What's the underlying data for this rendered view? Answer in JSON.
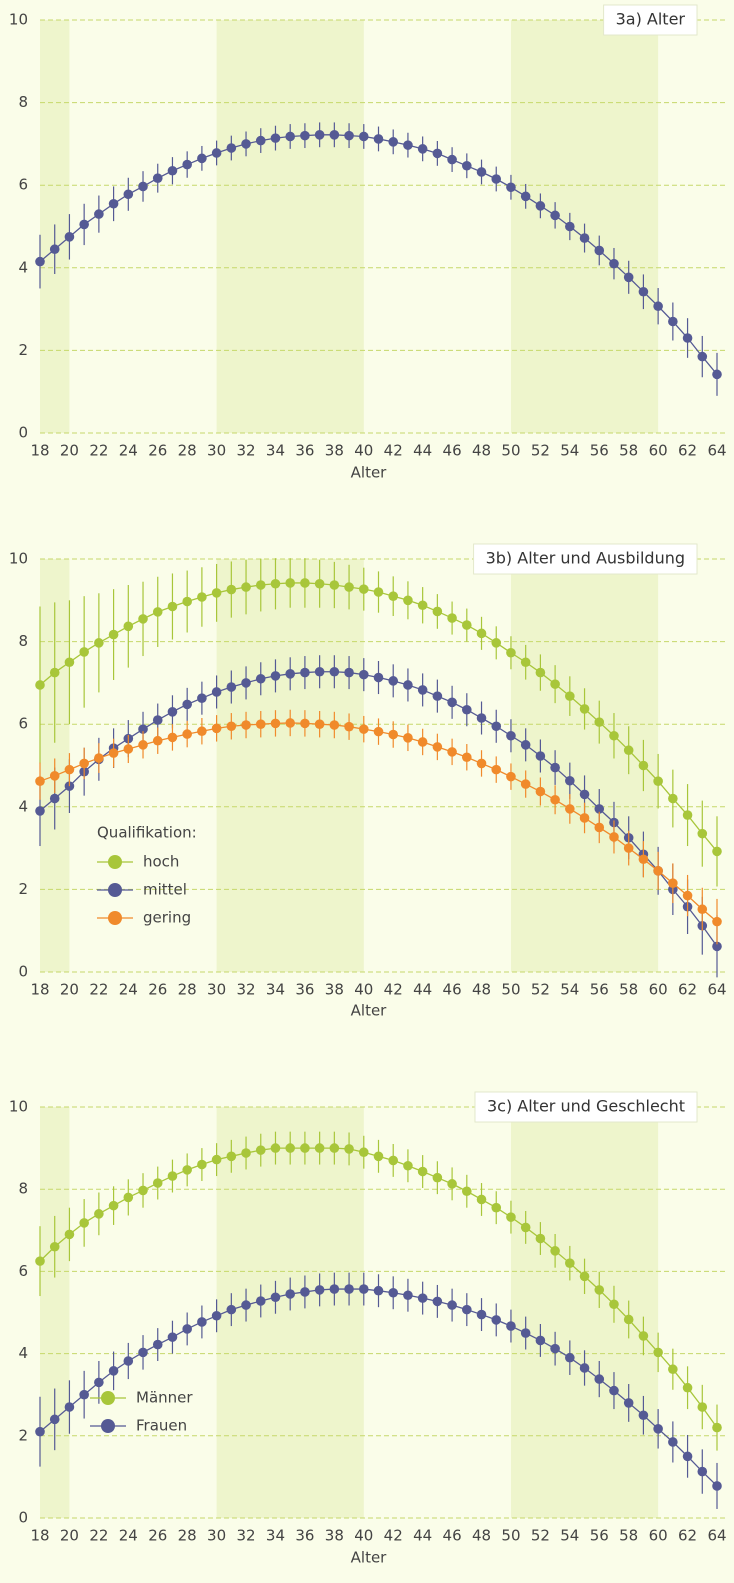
{
  "chart_data": [
    {
      "type": "line",
      "title": "3a) Alter",
      "xlabel": "Alter",
      "x": [
        18,
        19,
        20,
        21,
        22,
        23,
        24,
        25,
        26,
        27,
        28,
        29,
        30,
        31,
        32,
        33,
        34,
        35,
        36,
        37,
        38,
        39,
        40,
        41,
        42,
        43,
        44,
        45,
        46,
        47,
        48,
        49,
        50,
        51,
        52,
        53,
        54,
        55,
        56,
        57,
        58,
        59,
        60,
        61,
        62,
        63,
        64
      ],
      "xlim": [
        18,
        64
      ],
      "xticks": [
        18,
        20,
        22,
        24,
        26,
        28,
        30,
        32,
        34,
        36,
        38,
        40,
        42,
        44,
        46,
        48,
        50,
        52,
        54,
        56,
        58,
        60,
        62,
        64
      ],
      "ylim": [
        0,
        10
      ],
      "yticks": [
        0,
        2,
        4,
        6,
        8,
        10
      ],
      "grid": true,
      "shaded_ranges": [
        [
          18,
          20
        ],
        [
          30,
          40
        ],
        [
          50,
          60
        ]
      ],
      "series": [
        {
          "color": "#555a94",
          "values": [
            4.15,
            4.45,
            4.75,
            5.05,
            5.3,
            5.55,
            5.78,
            5.97,
            6.17,
            6.35,
            6.5,
            6.65,
            6.78,
            6.9,
            7.0,
            7.08,
            7.14,
            7.18,
            7.2,
            7.22,
            7.22,
            7.2,
            7.18,
            7.12,
            7.05,
            6.97,
            6.88,
            6.77,
            6.62,
            6.47,
            6.32,
            6.15,
            5.95,
            5.73,
            5.5,
            5.27,
            5.0,
            4.72,
            4.42,
            4.1,
            3.77,
            3.42,
            3.07,
            2.7,
            2.3,
            1.85,
            1.42
          ],
          "errors": [
            0.65,
            0.6,
            0.55,
            0.5,
            0.45,
            0.42,
            0.4,
            0.37,
            0.35,
            0.33,
            0.32,
            0.3,
            0.3,
            0.3,
            0.3,
            0.3,
            0.3,
            0.3,
            0.3,
            0.3,
            0.3,
            0.3,
            0.3,
            0.3,
            0.3,
            0.3,
            0.3,
            0.3,
            0.3,
            0.3,
            0.3,
            0.3,
            0.3,
            0.3,
            0.3,
            0.32,
            0.33,
            0.35,
            0.36,
            0.38,
            0.4,
            0.42,
            0.44,
            0.46,
            0.48,
            0.5,
            0.52
          ]
        }
      ]
    },
    {
      "type": "line",
      "title": "3b) Alter und Ausbildung",
      "xlabel": "Alter",
      "legend_title": "Qualifikation:",
      "legend": "left",
      "x": [
        18,
        19,
        20,
        21,
        22,
        23,
        24,
        25,
        26,
        27,
        28,
        29,
        30,
        31,
        32,
        33,
        34,
        35,
        36,
        37,
        38,
        39,
        40,
        41,
        42,
        43,
        44,
        45,
        46,
        47,
        48,
        49,
        50,
        51,
        52,
        53,
        54,
        55,
        56,
        57,
        58,
        59,
        60,
        61,
        62,
        63,
        64
      ],
      "xlim": [
        18,
        64
      ],
      "xticks": [
        18,
        20,
        22,
        24,
        26,
        28,
        30,
        32,
        34,
        36,
        38,
        40,
        42,
        44,
        46,
        48,
        50,
        52,
        54,
        56,
        58,
        60,
        62,
        64
      ],
      "ylim": [
        0,
        10
      ],
      "yticks": [
        0,
        2,
        4,
        6,
        8,
        10
      ],
      "grid": true,
      "shaded_ranges": [
        [
          18,
          20
        ],
        [
          30,
          40
        ],
        [
          50,
          60
        ]
      ],
      "series": [
        {
          "name": "hoch",
          "color": "#a8c63a",
          "values": [
            6.95,
            7.25,
            7.5,
            7.75,
            7.97,
            8.17,
            8.37,
            8.55,
            8.72,
            8.85,
            8.97,
            9.08,
            9.18,
            9.26,
            9.32,
            9.37,
            9.4,
            9.42,
            9.42,
            9.4,
            9.37,
            9.32,
            9.27,
            9.2,
            9.1,
            9.0,
            8.88,
            8.73,
            8.57,
            8.4,
            8.2,
            7.97,
            7.73,
            7.5,
            7.25,
            6.97,
            6.68,
            6.37,
            6.05,
            5.72,
            5.37,
            5.0,
            4.62,
            4.2,
            3.8,
            3.35,
            2.92
          ],
          "errors": [
            1.9,
            1.7,
            1.5,
            1.35,
            1.2,
            1.1,
            1.0,
            0.9,
            0.85,
            0.8,
            0.75,
            0.72,
            0.7,
            0.68,
            0.66,
            0.64,
            0.62,
            0.6,
            0.6,
            0.58,
            0.56,
            0.54,
            0.52,
            0.5,
            0.48,
            0.46,
            0.44,
            0.42,
            0.4,
            0.4,
            0.4,
            0.4,
            0.4,
            0.42,
            0.44,
            0.46,
            0.48,
            0.5,
            0.52,
            0.55,
            0.58,
            0.62,
            0.66,
            0.7,
            0.75,
            0.8,
            0.85
          ]
        },
        {
          "name": "mittel",
          "color": "#555a94",
          "values": [
            3.9,
            4.2,
            4.5,
            4.85,
            5.15,
            5.42,
            5.65,
            5.88,
            6.1,
            6.3,
            6.48,
            6.63,
            6.78,
            6.9,
            7.0,
            7.1,
            7.17,
            7.22,
            7.25,
            7.27,
            7.27,
            7.25,
            7.2,
            7.13,
            7.05,
            6.95,
            6.83,
            6.68,
            6.53,
            6.35,
            6.15,
            5.95,
            5.72,
            5.5,
            5.23,
            4.95,
            4.63,
            4.3,
            3.95,
            3.62,
            3.25,
            2.85,
            2.45,
            2.0,
            1.58,
            1.12,
            0.62
          ],
          "errors": [
            0.85,
            0.75,
            0.65,
            0.58,
            0.52,
            0.48,
            0.45,
            0.42,
            0.4,
            0.4,
            0.4,
            0.4,
            0.4,
            0.4,
            0.4,
            0.4,
            0.4,
            0.4,
            0.4,
            0.4,
            0.4,
            0.4,
            0.4,
            0.4,
            0.4,
            0.4,
            0.4,
            0.4,
            0.4,
            0.4,
            0.4,
            0.4,
            0.4,
            0.4,
            0.4,
            0.42,
            0.44,
            0.46,
            0.48,
            0.5,
            0.52,
            0.55,
            0.58,
            0.62,
            0.66,
            0.7,
            0.75
          ]
        },
        {
          "name": "gering",
          "color": "#f08a2b",
          "values": [
            4.62,
            4.75,
            4.9,
            5.05,
            5.18,
            5.3,
            5.4,
            5.5,
            5.6,
            5.68,
            5.76,
            5.83,
            5.9,
            5.95,
            5.98,
            6.0,
            6.02,
            6.03,
            6.02,
            6.0,
            5.98,
            5.94,
            5.88,
            5.82,
            5.75,
            5.67,
            5.57,
            5.45,
            5.33,
            5.2,
            5.05,
            4.9,
            4.73,
            4.55,
            4.37,
            4.17,
            3.95,
            3.73,
            3.5,
            3.27,
            3.0,
            2.73,
            2.45,
            2.15,
            1.85,
            1.52,
            1.22
          ],
          "errors": [
            0.45,
            0.42,
            0.4,
            0.38,
            0.36,
            0.35,
            0.34,
            0.33,
            0.32,
            0.32,
            0.32,
            0.32,
            0.32,
            0.32,
            0.32,
            0.32,
            0.32,
            0.32,
            0.32,
            0.32,
            0.32,
            0.32,
            0.32,
            0.32,
            0.32,
            0.32,
            0.32,
            0.32,
            0.32,
            0.32,
            0.32,
            0.32,
            0.32,
            0.33,
            0.34,
            0.35,
            0.36,
            0.37,
            0.38,
            0.4,
            0.42,
            0.44,
            0.46,
            0.48,
            0.5,
            0.52,
            0.55
          ]
        }
      ]
    },
    {
      "type": "line",
      "title": "3c) Alter und Geschlecht",
      "xlabel": "Alter",
      "legend": "lower left",
      "x": [
        18,
        19,
        20,
        21,
        22,
        23,
        24,
        25,
        26,
        27,
        28,
        29,
        30,
        31,
        32,
        33,
        34,
        35,
        36,
        37,
        38,
        39,
        40,
        41,
        42,
        43,
        44,
        45,
        46,
        47,
        48,
        49,
        50,
        51,
        52,
        53,
        54,
        55,
        56,
        57,
        58,
        59,
        60,
        61,
        62,
        63,
        64
      ],
      "xlim": [
        18,
        64
      ],
      "xticks": [
        18,
        20,
        22,
        24,
        26,
        28,
        30,
        32,
        34,
        36,
        38,
        40,
        42,
        44,
        46,
        48,
        50,
        52,
        54,
        56,
        58,
        60,
        62,
        64
      ],
      "ylim": [
        0,
        10
      ],
      "yticks": [
        0,
        2,
        4,
        6,
        8,
        10
      ],
      "grid": true,
      "shaded_ranges": [
        [
          18,
          20
        ],
        [
          30,
          40
        ],
        [
          50,
          60
        ]
      ],
      "series": [
        {
          "name": "Männer",
          "color": "#a8c63a",
          "values": [
            6.25,
            6.6,
            6.9,
            7.18,
            7.4,
            7.6,
            7.8,
            7.97,
            8.15,
            8.32,
            8.47,
            8.6,
            8.72,
            8.8,
            8.88,
            8.95,
            9.0,
            9.0,
            9.0,
            9.0,
            9.0,
            8.98,
            8.9,
            8.8,
            8.7,
            8.57,
            8.43,
            8.28,
            8.13,
            7.95,
            7.75,
            7.55,
            7.32,
            7.07,
            6.8,
            6.5,
            6.2,
            5.88,
            5.55,
            5.2,
            4.83,
            4.43,
            4.03,
            3.62,
            3.17,
            2.7,
            2.2
          ],
          "errors": [
            0.85,
            0.75,
            0.65,
            0.58,
            0.52,
            0.47,
            0.44,
            0.42,
            0.4,
            0.4,
            0.4,
            0.4,
            0.4,
            0.4,
            0.4,
            0.4,
            0.4,
            0.4,
            0.4,
            0.4,
            0.4,
            0.4,
            0.4,
            0.4,
            0.4,
            0.4,
            0.4,
            0.4,
            0.4,
            0.4,
            0.4,
            0.4,
            0.4,
            0.4,
            0.4,
            0.41,
            0.42,
            0.43,
            0.44,
            0.45,
            0.46,
            0.47,
            0.48,
            0.5,
            0.52,
            0.54,
            0.56
          ]
        },
        {
          "name": "Frauen",
          "color": "#555a94",
          "values": [
            2.1,
            2.4,
            2.7,
            3.0,
            3.3,
            3.58,
            3.82,
            4.03,
            4.22,
            4.4,
            4.6,
            4.77,
            4.92,
            5.07,
            5.18,
            5.28,
            5.37,
            5.45,
            5.5,
            5.55,
            5.57,
            5.57,
            5.57,
            5.53,
            5.48,
            5.42,
            5.35,
            5.27,
            5.18,
            5.07,
            4.95,
            4.82,
            4.67,
            4.5,
            4.32,
            4.12,
            3.9,
            3.65,
            3.38,
            3.1,
            2.8,
            2.5,
            2.17,
            1.85,
            1.5,
            1.13,
            0.78
          ],
          "errors": [
            0.85,
            0.75,
            0.65,
            0.58,
            0.52,
            0.47,
            0.44,
            0.42,
            0.4,
            0.4,
            0.4,
            0.4,
            0.4,
            0.4,
            0.4,
            0.4,
            0.4,
            0.4,
            0.4,
            0.4,
            0.4,
            0.4,
            0.4,
            0.4,
            0.4,
            0.4,
            0.4,
            0.4,
            0.4,
            0.4,
            0.4,
            0.4,
            0.4,
            0.4,
            0.4,
            0.41,
            0.42,
            0.43,
            0.44,
            0.45,
            0.46,
            0.47,
            0.48,
            0.5,
            0.52,
            0.54,
            0.56
          ]
        }
      ]
    }
  ]
}
